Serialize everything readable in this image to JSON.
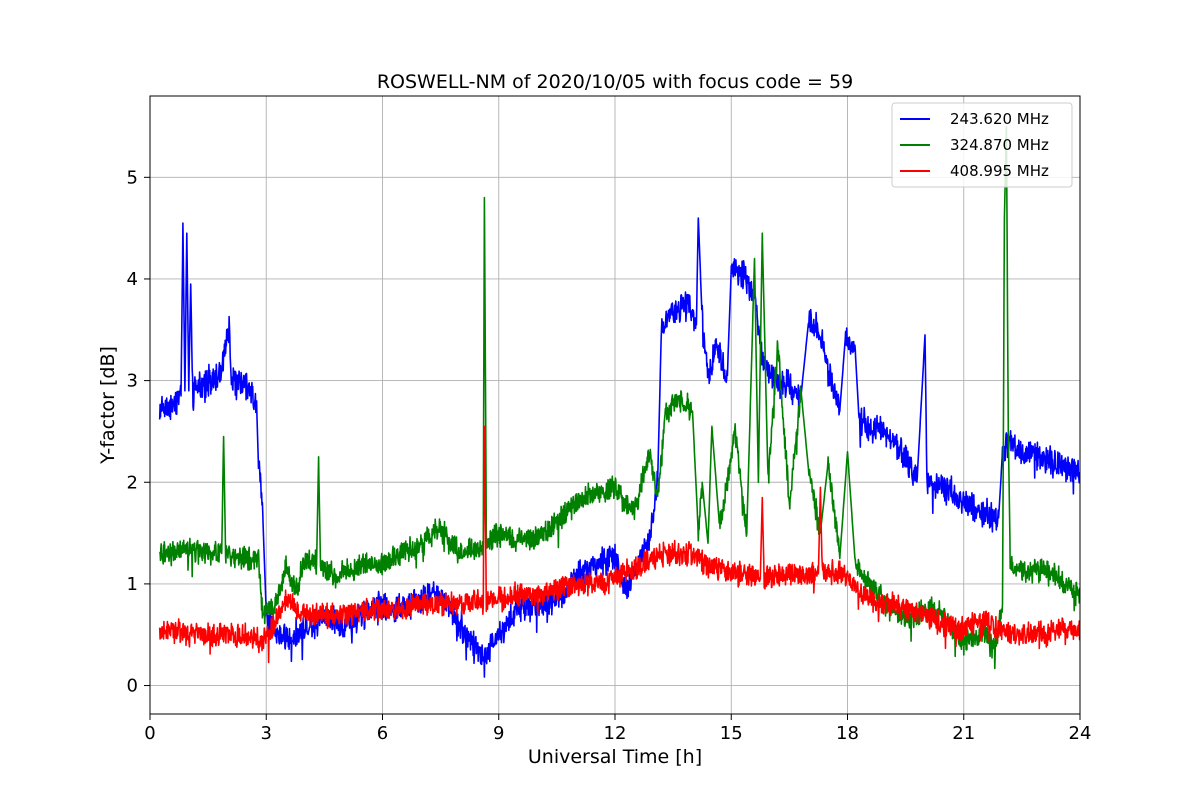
{
  "chart_data": {
    "type": "line",
    "title": "ROSWELL-NM of 2020/10/05 with focus code = 59",
    "xlabel": "Universal Time [h]",
    "ylabel": "Y-factor [dB]",
    "xlim": [
      0,
      24
    ],
    "ylim": [
      -0.28,
      5.8
    ],
    "x_ticks": [
      0,
      3,
      6,
      9,
      12,
      15,
      18,
      21,
      24
    ],
    "y_ticks": [
      0,
      1,
      2,
      3,
      4,
      5
    ],
    "grid": true,
    "legend_position": "top-right",
    "series": [
      {
        "name": "243.620 MHz",
        "color": "#0000ff",
        "noise": 0.12,
        "points": [
          [
            0.25,
            2.7
          ],
          [
            0.5,
            2.75
          ],
          [
            0.8,
            2.85
          ],
          [
            0.85,
            4.55
          ],
          [
            0.9,
            2.9
          ],
          [
            0.95,
            4.45
          ],
          [
            1.0,
            2.9
          ],
          [
            1.05,
            3.95
          ],
          [
            1.1,
            2.9
          ],
          [
            1.5,
            3.0
          ],
          [
            1.8,
            3.05
          ],
          [
            2.05,
            3.55
          ],
          [
            2.1,
            3.0
          ],
          [
            2.5,
            2.95
          ],
          [
            2.75,
            2.8
          ],
          [
            2.8,
            2.15
          ],
          [
            2.9,
            1.8
          ],
          [
            3.0,
            0.7
          ],
          [
            3.2,
            0.55
          ],
          [
            3.5,
            0.45
          ],
          [
            4.0,
            0.55
          ],
          [
            4.5,
            0.7
          ],
          [
            5.0,
            0.6
          ],
          [
            5.5,
            0.7
          ],
          [
            6.0,
            0.8
          ],
          [
            6.5,
            0.75
          ],
          [
            7.0,
            0.85
          ],
          [
            7.5,
            0.9
          ],
          [
            8.0,
            0.6
          ],
          [
            8.3,
            0.45
          ],
          [
            8.6,
            0.25
          ],
          [
            9.0,
            0.5
          ],
          [
            9.5,
            0.75
          ],
          [
            10.0,
            0.8
          ],
          [
            10.5,
            0.85
          ],
          [
            11.0,
            1.05
          ],
          [
            11.5,
            1.2
          ],
          [
            12.0,
            1.25
          ],
          [
            12.3,
            0.95
          ],
          [
            12.6,
            1.2
          ],
          [
            12.9,
            1.45
          ],
          [
            13.1,
            2.0
          ],
          [
            13.2,
            3.55
          ],
          [
            13.5,
            3.7
          ],
          [
            13.9,
            3.75
          ],
          [
            14.1,
            3.55
          ],
          [
            14.15,
            4.6
          ],
          [
            14.25,
            3.6
          ],
          [
            14.4,
            3.05
          ],
          [
            14.6,
            3.35
          ],
          [
            14.9,
            3.05
          ],
          [
            15.0,
            4.1
          ],
          [
            15.3,
            4.05
          ],
          [
            15.6,
            3.85
          ],
          [
            15.8,
            3.2
          ],
          [
            16.1,
            3.0
          ],
          [
            16.5,
            2.95
          ],
          [
            16.8,
            2.85
          ],
          [
            17.0,
            3.6
          ],
          [
            17.3,
            3.5
          ],
          [
            17.5,
            3.1
          ],
          [
            17.8,
            2.7
          ],
          [
            17.95,
            3.45
          ],
          [
            18.2,
            3.3
          ],
          [
            18.3,
            2.6
          ],
          [
            18.6,
            2.55
          ],
          [
            19.0,
            2.5
          ],
          [
            19.5,
            2.25
          ],
          [
            19.8,
            2.05
          ],
          [
            20.0,
            3.45
          ],
          [
            20.05,
            2.0
          ],
          [
            20.5,
            1.95
          ],
          [
            21.0,
            1.8
          ],
          [
            21.5,
            1.7
          ],
          [
            21.9,
            1.65
          ],
          [
            22.0,
            2.3
          ],
          [
            22.1,
            2.4
          ],
          [
            22.5,
            2.3
          ],
          [
            23.0,
            2.25
          ],
          [
            23.5,
            2.15
          ],
          [
            24.0,
            2.1
          ]
        ]
      },
      {
        "name": "324.870 MHz",
        "color": "#008000",
        "noise": 0.1,
        "points": [
          [
            0.25,
            1.3
          ],
          [
            0.5,
            1.3
          ],
          [
            1.0,
            1.35
          ],
          [
            1.5,
            1.3
          ],
          [
            1.85,
            1.3
          ],
          [
            1.9,
            2.45
          ],
          [
            1.95,
            1.3
          ],
          [
            2.5,
            1.25
          ],
          [
            2.8,
            1.25
          ],
          [
            2.9,
            0.75
          ],
          [
            3.2,
            0.75
          ],
          [
            3.5,
            1.15
          ],
          [
            3.8,
            0.95
          ],
          [
            4.0,
            1.25
          ],
          [
            4.3,
            1.2
          ],
          [
            4.35,
            2.25
          ],
          [
            4.4,
            1.2
          ],
          [
            4.8,
            1.05
          ],
          [
            5.0,
            1.1
          ],
          [
            5.5,
            1.2
          ],
          [
            6.0,
            1.2
          ],
          [
            6.5,
            1.3
          ],
          [
            7.0,
            1.4
          ],
          [
            7.5,
            1.55
          ],
          [
            8.0,
            1.3
          ],
          [
            8.5,
            1.35
          ],
          [
            8.6,
            1.4
          ],
          [
            8.63,
            4.8
          ],
          [
            8.68,
            1.4
          ],
          [
            9.0,
            1.5
          ],
          [
            9.5,
            1.45
          ],
          [
            10.0,
            1.45
          ],
          [
            10.5,
            1.6
          ],
          [
            11.0,
            1.8
          ],
          [
            11.5,
            1.9
          ],
          [
            12.0,
            1.95
          ],
          [
            12.3,
            1.75
          ],
          [
            12.6,
            1.85
          ],
          [
            12.9,
            2.3
          ],
          [
            13.1,
            1.8
          ],
          [
            13.3,
            2.7
          ],
          [
            13.7,
            2.8
          ],
          [
            14.0,
            2.7
          ],
          [
            14.15,
            1.5
          ],
          [
            14.25,
            2.0
          ],
          [
            14.4,
            1.4
          ],
          [
            14.5,
            2.55
          ],
          [
            14.7,
            1.55
          ],
          [
            14.9,
            2.0
          ],
          [
            15.1,
            2.5
          ],
          [
            15.4,
            1.5
          ],
          [
            15.6,
            4.2
          ],
          [
            15.7,
            2.0
          ],
          [
            15.8,
            4.45
          ],
          [
            15.95,
            2.0
          ],
          [
            16.2,
            3.35
          ],
          [
            16.5,
            1.8
          ],
          [
            16.8,
            2.9
          ],
          [
            17.0,
            2.1
          ],
          [
            17.3,
            1.5
          ],
          [
            17.5,
            2.2
          ],
          [
            17.8,
            1.25
          ],
          [
            18.0,
            2.3
          ],
          [
            18.2,
            1.2
          ],
          [
            18.5,
            1.05
          ],
          [
            19.0,
            0.8
          ],
          [
            19.5,
            0.65
          ],
          [
            20.0,
            0.75
          ],
          [
            20.5,
            0.7
          ],
          [
            21.0,
            0.4
          ],
          [
            21.5,
            0.55
          ],
          [
            21.8,
            0.35
          ],
          [
            22.0,
            0.8
          ],
          [
            22.05,
            4.6
          ],
          [
            22.1,
            5.5
          ],
          [
            22.15,
            2.5
          ],
          [
            22.2,
            1.2
          ],
          [
            22.6,
            1.1
          ],
          [
            23.0,
            1.15
          ],
          [
            23.5,
            1.05
          ],
          [
            24.0,
            0.85
          ]
        ]
      },
      {
        "name": "408.995 MHz",
        "color": "#ff0000",
        "noise": 0.1,
        "points": [
          [
            0.25,
            0.5
          ],
          [
            0.5,
            0.55
          ],
          [
            1.0,
            0.5
          ],
          [
            1.5,
            0.5
          ],
          [
            2.0,
            0.5
          ],
          [
            2.5,
            0.5
          ],
          [
            2.9,
            0.45
          ],
          [
            3.2,
            0.6
          ],
          [
            3.5,
            0.85
          ],
          [
            4.0,
            0.7
          ],
          [
            4.5,
            0.7
          ],
          [
            5.0,
            0.7
          ],
          [
            5.5,
            0.75
          ],
          [
            6.0,
            0.75
          ],
          [
            6.5,
            0.75
          ],
          [
            7.0,
            0.8
          ],
          [
            7.5,
            0.8
          ],
          [
            8.0,
            0.8
          ],
          [
            8.5,
            0.85
          ],
          [
            8.6,
            0.8
          ],
          [
            8.63,
            2.55
          ],
          [
            8.68,
            0.8
          ],
          [
            9.0,
            0.85
          ],
          [
            9.5,
            0.9
          ],
          [
            10.0,
            0.9
          ],
          [
            10.5,
            0.95
          ],
          [
            11.0,
            1.0
          ],
          [
            11.5,
            1.0
          ],
          [
            12.0,
            1.05
          ],
          [
            12.5,
            1.15
          ],
          [
            13.0,
            1.25
          ],
          [
            13.5,
            1.3
          ],
          [
            14.0,
            1.3
          ],
          [
            14.5,
            1.15
          ],
          [
            15.0,
            1.1
          ],
          [
            15.5,
            1.1
          ],
          [
            15.75,
            1.05
          ],
          [
            15.8,
            1.85
          ],
          [
            15.85,
            1.05
          ],
          [
            16.5,
            1.1
          ],
          [
            17.0,
            1.1
          ],
          [
            17.25,
            1.1
          ],
          [
            17.3,
            1.95
          ],
          [
            17.35,
            1.1
          ],
          [
            17.8,
            1.1
          ],
          [
            18.0,
            1.05
          ],
          [
            18.5,
            0.85
          ],
          [
            19.0,
            0.8
          ],
          [
            19.5,
            0.75
          ],
          [
            20.0,
            0.7
          ],
          [
            20.5,
            0.6
          ],
          [
            21.0,
            0.55
          ],
          [
            21.5,
            0.65
          ],
          [
            22.0,
            0.55
          ],
          [
            22.5,
            0.5
          ],
          [
            23.0,
            0.5
          ],
          [
            23.5,
            0.55
          ],
          [
            24.0,
            0.55
          ]
        ]
      }
    ]
  }
}
